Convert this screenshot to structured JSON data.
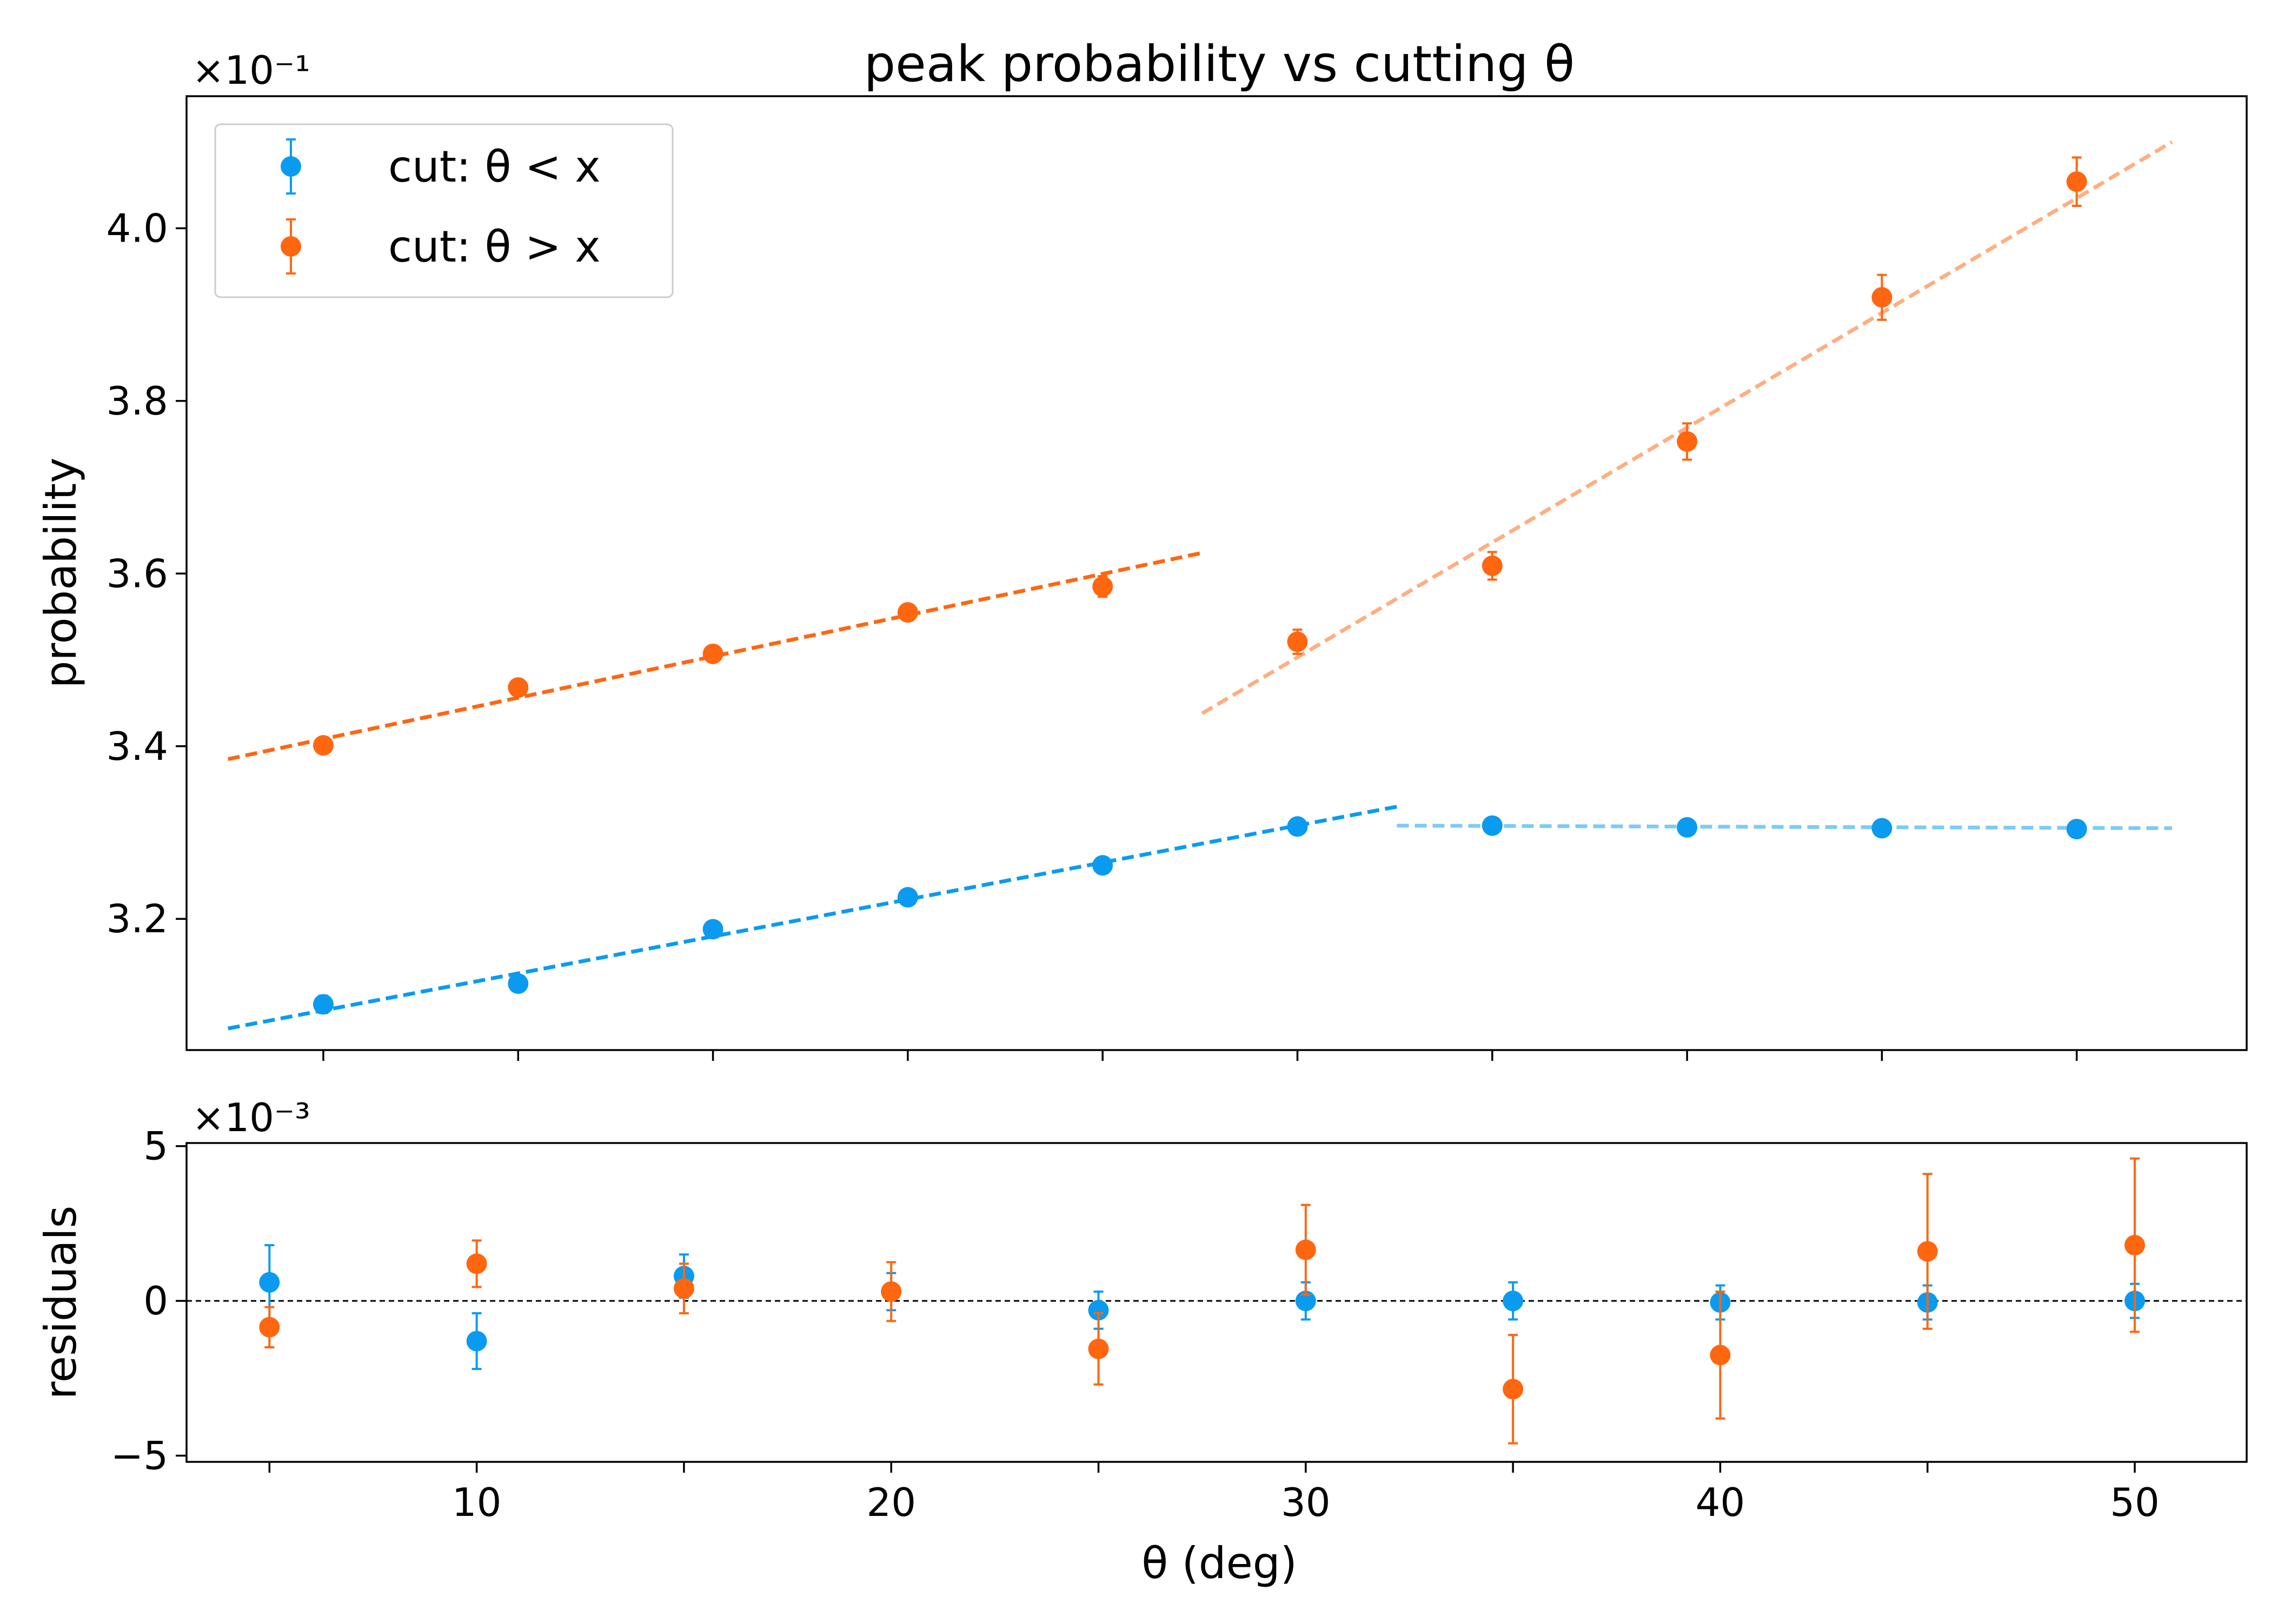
{
  "chart_data": {
    "type": "scatter",
    "title": "peak probability vs cutting θ",
    "colors": {
      "below": "#0a9bf0",
      "above": "#ff6610",
      "fit_below_1": "#0a9bf0",
      "fit_below_2": "#7dcbf5",
      "fit_above_1": "#ff6610",
      "fit_above_2": "#ffae80"
    },
    "legend": {
      "placement": "top-left",
      "entries": [
        {
          "series": "below",
          "label": "cut: θ < x"
        },
        {
          "series": "above",
          "label": "cut: θ > x"
        }
      ]
    },
    "top_panel": {
      "ylabel": "probability",
      "multiplier": "×10⁻¹",
      "xlim": [
        3,
        52.7
      ],
      "ylim": [
        3.048,
        4.153
      ],
      "yticks": [
        3.2,
        3.4,
        3.6,
        3.8,
        4.0
      ],
      "ytick_labels": [
        "3.2",
        "3.4",
        "3.6",
        "3.8",
        "4.0"
      ],
      "xticks": [
        6.3,
        11,
        15.7,
        20.4,
        25.1,
        29.8,
        34.5,
        39.2,
        43.9,
        48.6
      ],
      "series": [
        {
          "key": "below",
          "x": [
            6.3,
            11,
            15.7,
            20.4,
            25.1,
            29.8,
            34.5,
            39.2,
            43.9,
            48.6
          ],
          "y": [
            3.101,
            3.125,
            3.188,
            3.225,
            3.262,
            3.307,
            3.308,
            3.306,
            3.305,
            3.304
          ],
          "err": [
            0.01,
            0.007,
            0.006,
            0.005,
            0.005,
            0.005,
            0.005,
            0.004,
            0.004,
            0.004
          ]
        },
        {
          "key": "above",
          "x": [
            6.3,
            11,
            15.7,
            20.4,
            25.1,
            29.8,
            34.5,
            39.2,
            43.9,
            48.6
          ],
          "y": [
            3.401,
            3.468,
            3.507,
            3.555,
            3.585,
            3.521,
            3.609,
            3.753,
            3.92,
            4.054
          ],
          "err": [
            0.006,
            0.007,
            0.007,
            0.008,
            0.012,
            0.014,
            0.016,
            0.021,
            0.026,
            0.028
          ]
        }
      ],
      "fits": [
        {
          "color_key": "fit_below_1",
          "x": [
            4,
            32.2
          ],
          "y": [
            3.073,
            3.33
          ]
        },
        {
          "color_key": "fit_below_2",
          "x": [
            32.2,
            50.9
          ],
          "y": [
            3.308,
            3.305
          ]
        },
        {
          "color_key": "fit_above_1",
          "x": [
            4,
            27.5
          ],
          "y": [
            3.385,
            3.624
          ]
        },
        {
          "color_key": "fit_above_2",
          "x": [
            27.5,
            50.9
          ],
          "y": [
            3.438,
            4.1
          ]
        }
      ]
    },
    "bottom_panel": {
      "ylabel": "residuals",
      "xlabel": "θ (deg)",
      "multiplier": "×10⁻³",
      "xlim": [
        3,
        52.7
      ],
      "ylim": [
        -5.2,
        5.1
      ],
      "yticks": [
        -5,
        0,
        5
      ],
      "ytick_labels": [
        "−5",
        "0",
        "5"
      ],
      "xticks": [
        5,
        10,
        15,
        20,
        25,
        30,
        35,
        40,
        45,
        50
      ],
      "xtick_labels": [
        "",
        "10",
        "",
        "20",
        "",
        "30",
        "",
        "40",
        "",
        "50"
      ],
      "series": [
        {
          "key": "below",
          "x": [
            5,
            10,
            15,
            20,
            25,
            30,
            35,
            40,
            45,
            50
          ],
          "y": [
            0.6,
            -1.3,
            0.8,
            0.3,
            -0.3,
            0.0,
            0.0,
            -0.05,
            -0.05,
            0.0
          ],
          "err": [
            1.2,
            0.9,
            0.7,
            0.6,
            0.6,
            0.6,
            0.6,
            0.55,
            0.55,
            0.55
          ]
        },
        {
          "key": "above",
          "x": [
            5,
            10,
            15,
            20,
            25,
            30,
            35,
            40,
            45,
            50
          ],
          "y": [
            -0.85,
            1.2,
            0.4,
            0.3,
            -1.55,
            1.65,
            -2.85,
            -1.75,
            1.6,
            1.8
          ],
          "err": [
            0.65,
            0.75,
            0.8,
            0.95,
            1.15,
            1.45,
            1.75,
            2.05,
            2.5,
            2.8
          ]
        }
      ]
    }
  }
}
